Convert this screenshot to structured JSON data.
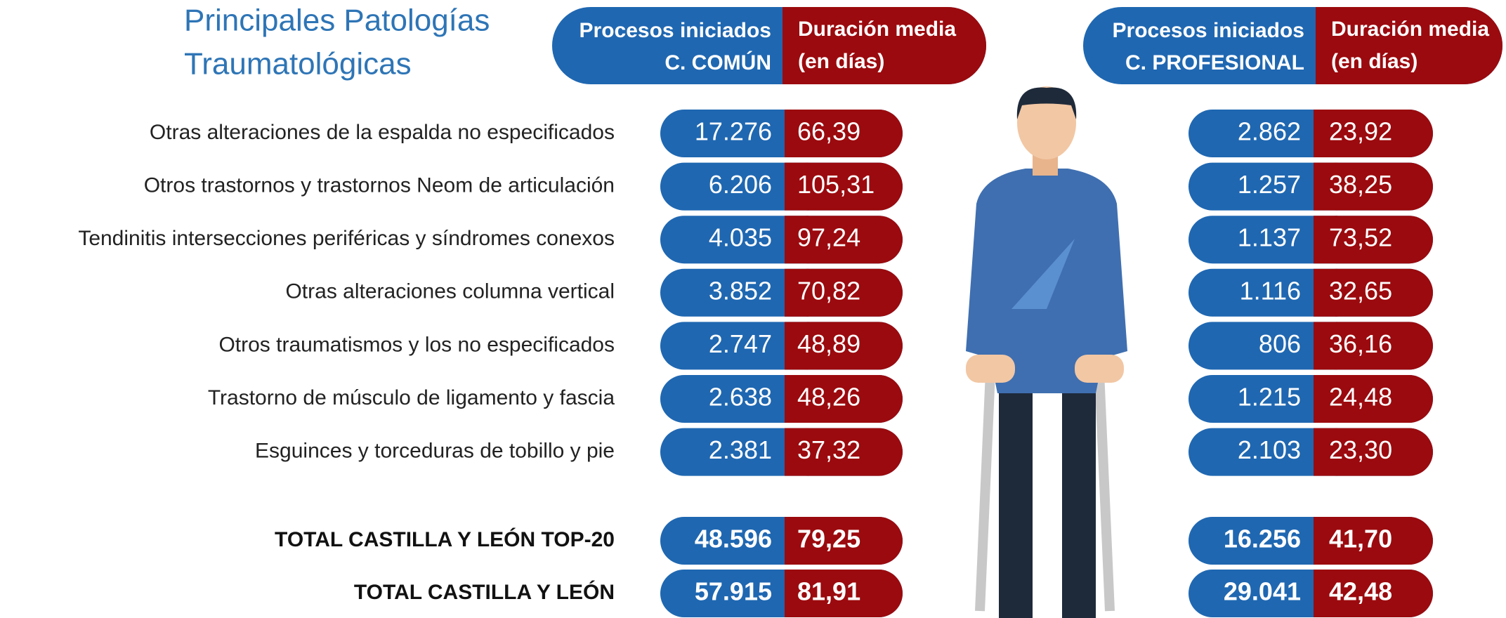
{
  "title": [
    "Principales Patologías",
    "Traumatológicas"
  ],
  "headers": {
    "comun": [
      "Procesos iniciados",
      "C. COMÚN"
    ],
    "comun_dias": [
      "Duración media",
      "(en días)"
    ],
    "prof": [
      "Procesos iniciados",
      "C. PROFESIONAL"
    ],
    "prof_dias": [
      "Duración media",
      "(en días)"
    ]
  },
  "rows": [
    {
      "label": "Otras alteraciones de la espalda no especificados",
      "comun": "17.276",
      "comun_dias": "66,39",
      "prof": "2.862",
      "prof_dias": "23,92"
    },
    {
      "label": "Otros trastornos y trastornos Neom de articulación",
      "comun": "6.206",
      "comun_dias": "105,31",
      "prof": "1.257",
      "prof_dias": "38,25"
    },
    {
      "label": "Tendinitis intersecciones periféricas y síndromes conexos",
      "comun": "4.035",
      "comun_dias": "97,24",
      "prof": "1.137",
      "prof_dias": "73,52"
    },
    {
      "label": "Otras alteraciones columna vertical",
      "comun": "3.852",
      "comun_dias": "70,82",
      "prof": "1.116",
      "prof_dias": "32,65"
    },
    {
      "label": "Otros traumatismos y los no especificados",
      "comun": "2.747",
      "comun_dias": "48,89",
      "prof": "806",
      "prof_dias": "36,16"
    },
    {
      "label": "Trastorno de músculo de ligamento y fascia",
      "comun": "2.638",
      "comun_dias": "48,26",
      "prof": "1.215",
      "prof_dias": "24,48"
    },
    {
      "label": "Esguinces y torceduras de tobillo y pie",
      "comun": "2.381",
      "comun_dias": "37,32",
      "prof": "2.103",
      "prof_dias": "23,30"
    }
  ],
  "totals": [
    {
      "label": "TOTAL CASTILLA Y LEÓN TOP-20",
      "comun": "48.596",
      "comun_dias": "79,25",
      "prof": "16.256",
      "prof_dias": "41,70"
    },
    {
      "label": "TOTAL CASTILLA Y LEÓN",
      "comun": "57.915",
      "comun_dias": "81,91",
      "prof": "29.041",
      "prof_dias": "42,48"
    }
  ]
}
